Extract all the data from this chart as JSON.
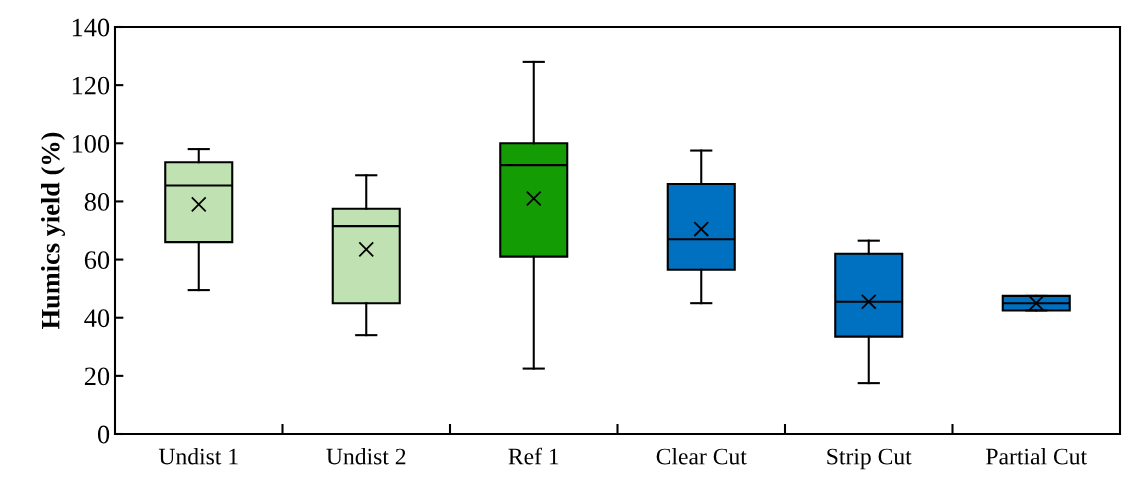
{
  "chart_data": {
    "type": "box",
    "ylabel": "Humics yield (%)",
    "categories": [
      "Undist 1",
      "Undist 2",
      "Ref 1",
      "Clear Cut",
      "Strip Cut",
      "Partial Cut"
    ],
    "colors": [
      "#c0e2b2",
      "#c0e2b2",
      "#149c04",
      "#0070c0",
      "#0070c0",
      "#0070c0"
    ],
    "boxes": [
      {
        "low": 49.5,
        "q1": 66,
        "median": 85.5,
        "q3": 93.5,
        "high": 98,
        "mean": 79
      },
      {
        "low": 34,
        "q1": 45,
        "median": 71.5,
        "q3": 77.5,
        "high": 89,
        "mean": 63.5
      },
      {
        "low": 22.5,
        "q1": 61,
        "median": 92.5,
        "q3": 100,
        "high": 128,
        "mean": 81
      },
      {
        "low": 45,
        "q1": 56.5,
        "median": 67,
        "q3": 86,
        "high": 97.5,
        "mean": 70.5
      },
      {
        "low": 17.5,
        "q1": 33.5,
        "median": 45.5,
        "q3": 62,
        "high": 66.5,
        "mean": 45.5
      },
      {
        "low": 42.5,
        "q1": 42.5,
        "median": 45,
        "q3": 47.5,
        "high": 47.5,
        "mean": 45
      }
    ],
    "ylim": [
      0,
      140
    ],
    "yticks": [
      0,
      20,
      40,
      60,
      80,
      100,
      120,
      140
    ],
    "grid": false
  }
}
